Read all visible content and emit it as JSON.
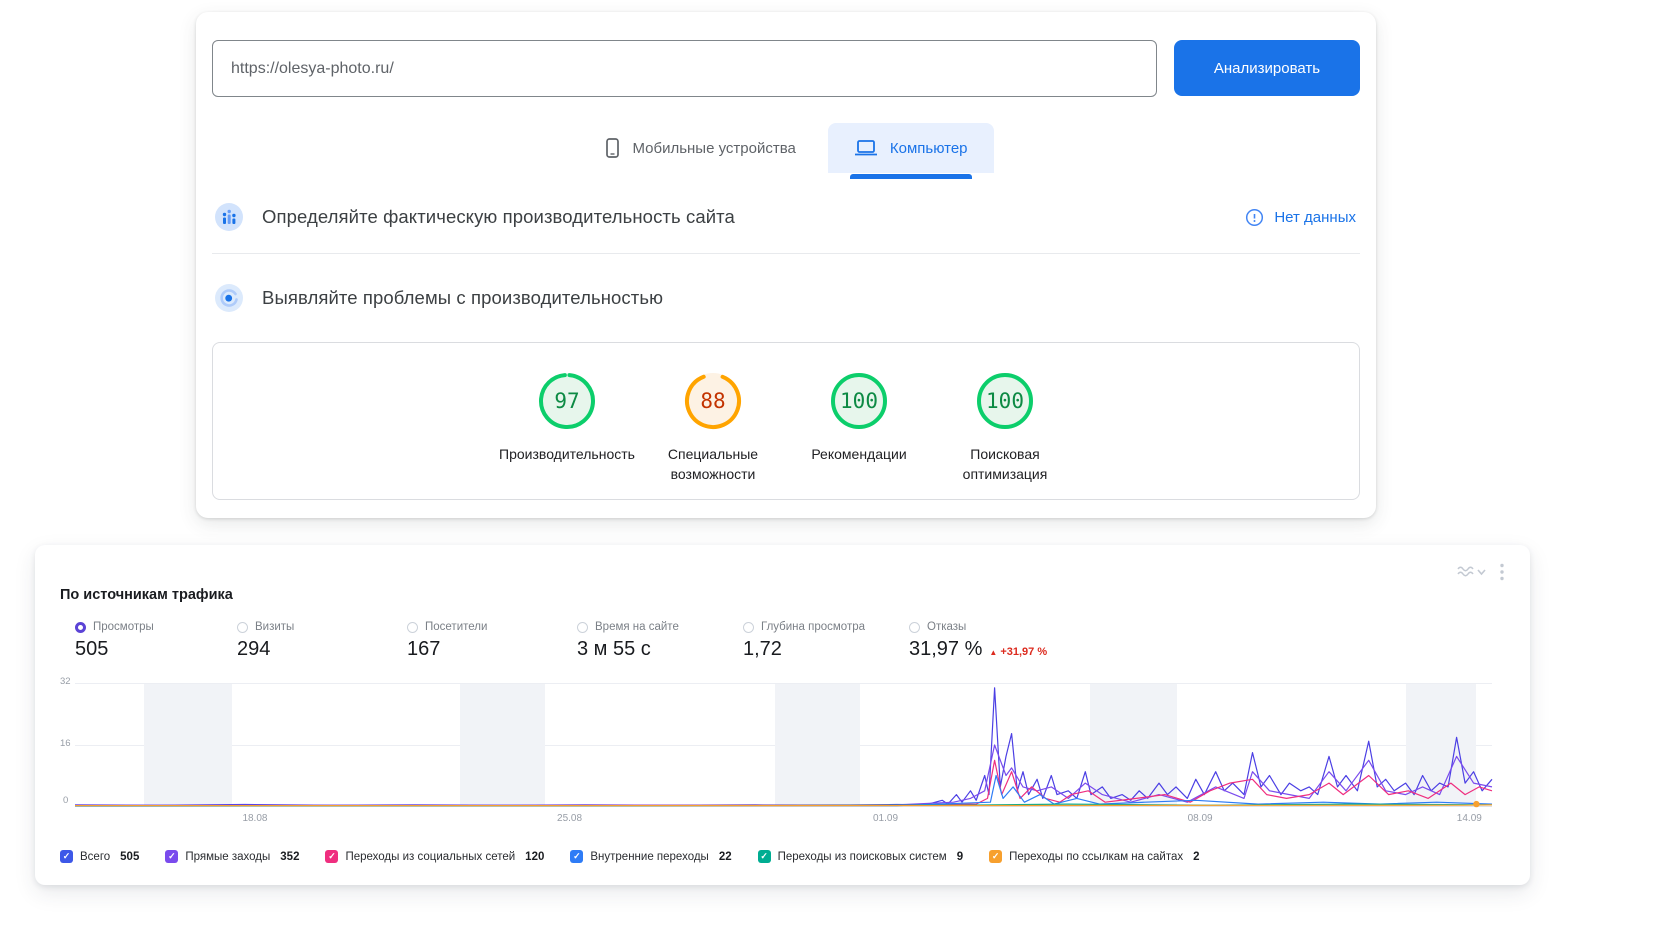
{
  "pagespeed": {
    "url": "https://olesya-photo.ru/",
    "analyze_button": "Анализировать",
    "tabs": [
      {
        "label": "Мобильные устройства"
      },
      {
        "label": "Компьютер"
      }
    ],
    "field_section": {
      "title": "Определяйте фактическую производительность сайта",
      "status_link": "Нет данных"
    },
    "lab_section": {
      "title": "Выявляйте проблемы с производительностью"
    },
    "scores": [
      {
        "value": "97",
        "label": "Производительность",
        "level": "good"
      },
      {
        "value": "88",
        "label": "Специальные возможности",
        "level": "average"
      },
      {
        "value": "100",
        "label": "Рекомендации",
        "level": "good"
      },
      {
        "value": "100",
        "label": "Поисковая оптимизация",
        "level": "good"
      }
    ],
    "colors": {
      "accent": "#1a73e8",
      "good_ring": "#0cce6b",
      "good_text": "#0d8a44",
      "good_bg": "#e7f6ec",
      "average_ring": "#ffa400",
      "average_text": "#c33300",
      "average_bg": "#fdf2e4"
    }
  },
  "metrica": {
    "title": "По источникам трафика",
    "metrics": [
      {
        "label": "Просмотры",
        "value": "505",
        "selected": true
      },
      {
        "label": "Визиты",
        "value": "294"
      },
      {
        "label": "Посетители",
        "value": "167"
      },
      {
        "label": "Время на сайте",
        "value": "3 м 55 с"
      },
      {
        "label": "Глубина просмотра",
        "value": "1,72"
      },
      {
        "label": "Отказы",
        "value": "31,97 %",
        "change": "+31,97 %",
        "change_dir": "up",
        "change_color": "#dc2a1e"
      }
    ],
    "legend": [
      {
        "label": "Всего",
        "value": "505",
        "color": "#3d58e8"
      },
      {
        "label": "Прямые заходы",
        "value": "352",
        "color": "#7a4bed"
      },
      {
        "label": "Переходы из социальных сетей",
        "value": "120",
        "color": "#ef2e7f"
      },
      {
        "label": "Внутренние переходы",
        "value": "22",
        "color": "#2e7cf6"
      },
      {
        "label": "Переходы из поисковых систем",
        "value": "9",
        "color": "#00ad92"
      },
      {
        "label": "Переходы по ссылкам на сайтах",
        "value": "2",
        "color": "#f7a02e"
      }
    ],
    "chart_data": {
      "type": "line",
      "title": "По источникам трафика",
      "ylim": [
        0,
        32
      ],
      "yticks": [
        0,
        16,
        32
      ],
      "grid": true,
      "legend_position": "bottom",
      "xticks": [
        {
          "pos": 12.7,
          "label": "18.08"
        },
        {
          "pos": 34.9,
          "label": "25.08"
        },
        {
          "pos": 57.2,
          "label": "01.09"
        },
        {
          "pos": 79.4,
          "label": "08.09"
        },
        {
          "pos": 98.4,
          "label": "14.09"
        }
      ],
      "weekend_bands": [
        [
          4.9,
          11.1
        ],
        [
          27.2,
          33.2
        ],
        [
          49.4,
          55.4
        ],
        [
          71.6,
          77.8
        ],
        [
          93.9,
          98.9
        ]
      ],
      "end_dot": {
        "pos": 98.9,
        "y": 0.5,
        "color": "#f7a02e"
      },
      "series": [
        {
          "name": "Всего",
          "total": 505,
          "color": "#4b3fe4",
          "points": [
            [
              0,
              0.3
            ],
            [
              6,
              0.2
            ],
            [
              12,
              0.4
            ],
            [
              18,
              0.2
            ],
            [
              24,
              0.3
            ],
            [
              30,
              0.2
            ],
            [
              36,
              0.3
            ],
            [
              42,
              0.2
            ],
            [
              48,
              0.3
            ],
            [
              54,
              0.2
            ],
            [
              58,
              0.4
            ],
            [
              60,
              0.3
            ],
            [
              61.2,
              1.5
            ],
            [
              61.6,
              0.5
            ],
            [
              62.2,
              3
            ],
            [
              62.6,
              1
            ],
            [
              63.2,
              4
            ],
            [
              63.6,
              1.5
            ],
            [
              64.2,
              8
            ],
            [
              64.5,
              3
            ],
            [
              64.9,
              31
            ],
            [
              65.3,
              5
            ],
            [
              65.7,
              13
            ],
            [
              66.1,
              19
            ],
            [
              66.5,
              4
            ],
            [
              66.9,
              9
            ],
            [
              67.3,
              3
            ],
            [
              67.9,
              7
            ],
            [
              68.3,
              2
            ],
            [
              68.9,
              8
            ],
            [
              69.3,
              3
            ],
            [
              70.1,
              4
            ],
            [
              70.7,
              2
            ],
            [
              71.3,
              9
            ],
            [
              71.7,
              3
            ],
            [
              72.5,
              5
            ],
            [
              73.1,
              2
            ],
            [
              73.9,
              3
            ],
            [
              74.5,
              1.5
            ],
            [
              75.1,
              4
            ],
            [
              75.7,
              2
            ],
            [
              76.5,
              6
            ],
            [
              77.1,
              3
            ],
            [
              77.7,
              5
            ],
            [
              78.5,
              2
            ],
            [
              79.1,
              7
            ],
            [
              79.7,
              3
            ],
            [
              80.5,
              9
            ],
            [
              81.1,
              4
            ],
            [
              81.7,
              6
            ],
            [
              82.5,
              3
            ],
            [
              83.1,
              14
            ],
            [
              83.7,
              5
            ],
            [
              84.3,
              8
            ],
            [
              85.1,
              3
            ],
            [
              85.7,
              6
            ],
            [
              86.5,
              4
            ],
            [
              87.1,
              5
            ],
            [
              87.7,
              3
            ],
            [
              88.5,
              13
            ],
            [
              89.1,
              5
            ],
            [
              89.7,
              8
            ],
            [
              90.5,
              4
            ],
            [
              91.3,
              17
            ],
            [
              91.9,
              5
            ],
            [
              92.5,
              7
            ],
            [
              93.1,
              4
            ],
            [
              93.9,
              6
            ],
            [
              94.5,
              3
            ],
            [
              95.1,
              8
            ],
            [
              95.7,
              4
            ],
            [
              96.3,
              6
            ],
            [
              96.9,
              5
            ],
            [
              97.5,
              18
            ],
            [
              98.1,
              6
            ],
            [
              98.7,
              9
            ],
            [
              99.3,
              4
            ],
            [
              100,
              7
            ]
          ]
        },
        {
          "name": "Прямые заходы",
          "total": 352,
          "color": "#7a4bed",
          "points": [
            [
              0,
              0.2
            ],
            [
              20,
              0.2
            ],
            [
              40,
              0.2
            ],
            [
              58,
              0.3
            ],
            [
              62,
              1
            ],
            [
              63.2,
              2
            ],
            [
              64.2,
              4
            ],
            [
              64.9,
              16
            ],
            [
              65.7,
              8
            ],
            [
              66.1,
              10
            ],
            [
              66.9,
              5
            ],
            [
              67.9,
              4
            ],
            [
              68.9,
              5
            ],
            [
              70.1,
              2
            ],
            [
              71.3,
              6
            ],
            [
              72.5,
              3
            ],
            [
              74.5,
              1
            ],
            [
              76.5,
              3
            ],
            [
              78.5,
              1
            ],
            [
              80.5,
              5
            ],
            [
              82.5,
              2
            ],
            [
              83.1,
              9
            ],
            [
              84.3,
              4
            ],
            [
              85.7,
              3
            ],
            [
              87.1,
              2
            ],
            [
              88.5,
              9
            ],
            [
              89.7,
              4
            ],
            [
              91.3,
              12
            ],
            [
              92.5,
              4
            ],
            [
              93.9,
              3
            ],
            [
              95.1,
              5
            ],
            [
              96.3,
              3
            ],
            [
              97.5,
              13
            ],
            [
              98.7,
              6
            ],
            [
              100,
              5
            ]
          ]
        },
        {
          "name": "Переходы из социальных сетей",
          "total": 120,
          "color": "#ef2e7f",
          "points": [
            [
              0,
              0.1
            ],
            [
              30,
              0.1
            ],
            [
              58,
              0.2
            ],
            [
              63.6,
              0.5
            ],
            [
              64.4,
              2
            ],
            [
              64.9,
              12
            ],
            [
              65.4,
              3
            ],
            [
              66.1,
              9
            ],
            [
              66.7,
              2
            ],
            [
              67.5,
              5
            ],
            [
              68.5,
              2
            ],
            [
              69.5,
              1
            ],
            [
              70.3,
              3
            ],
            [
              71.5,
              4
            ],
            [
              72.7,
              1
            ],
            [
              74.9,
              2
            ],
            [
              76.9,
              3
            ],
            [
              78.7,
              1
            ],
            [
              80.1,
              4
            ],
            [
              81.5,
              6
            ],
            [
              83.1,
              7
            ],
            [
              84.1,
              3
            ],
            [
              85.5,
              2
            ],
            [
              87.1,
              3
            ],
            [
              88.5,
              6
            ],
            [
              89.5,
              3
            ],
            [
              91.3,
              8
            ],
            [
              92.7,
              3
            ],
            [
              94.1,
              4
            ],
            [
              95.5,
              2
            ],
            [
              97.1,
              6
            ],
            [
              98.1,
              3
            ],
            [
              99.1,
              5
            ],
            [
              100,
              4
            ]
          ]
        },
        {
          "name": "Внутренние переходы",
          "total": 22,
          "color": "#2e7cf6",
          "points": [
            [
              0,
              0
            ],
            [
              58,
              0.1
            ],
            [
              64.6,
              1
            ],
            [
              65,
              8
            ],
            [
              65.5,
              2
            ],
            [
              66.2,
              5
            ],
            [
              67,
              1
            ],
            [
              68.1,
              3
            ],
            [
              69.1,
              0.5
            ],
            [
              70.7,
              2
            ],
            [
              72.3,
              0.5
            ],
            [
              75.5,
              1
            ],
            [
              79.1,
              1.5
            ],
            [
              83.5,
              0.5
            ],
            [
              88.1,
              1
            ],
            [
              92.1,
              0.5
            ],
            [
              96.1,
              1
            ],
            [
              100,
              0.5
            ]
          ]
        },
        {
          "name": "Переходы из поисковых систем",
          "total": 9,
          "color": "#00ad92",
          "points": [
            [
              0,
              0.1
            ],
            [
              40,
              0.1
            ],
            [
              62,
              0.2
            ],
            [
              70,
              0.5
            ],
            [
              80,
              0.2
            ],
            [
              90,
              0.5
            ],
            [
              100,
              0.3
            ]
          ]
        },
        {
          "name": "Переходы по ссылкам на сайтах",
          "total": 2,
          "color": "#f7a02e",
          "points": [
            [
              0,
              0.1
            ],
            [
              50,
              0.1
            ],
            [
              98,
              0.2
            ],
            [
              100,
              0.3
            ]
          ]
        }
      ]
    }
  }
}
